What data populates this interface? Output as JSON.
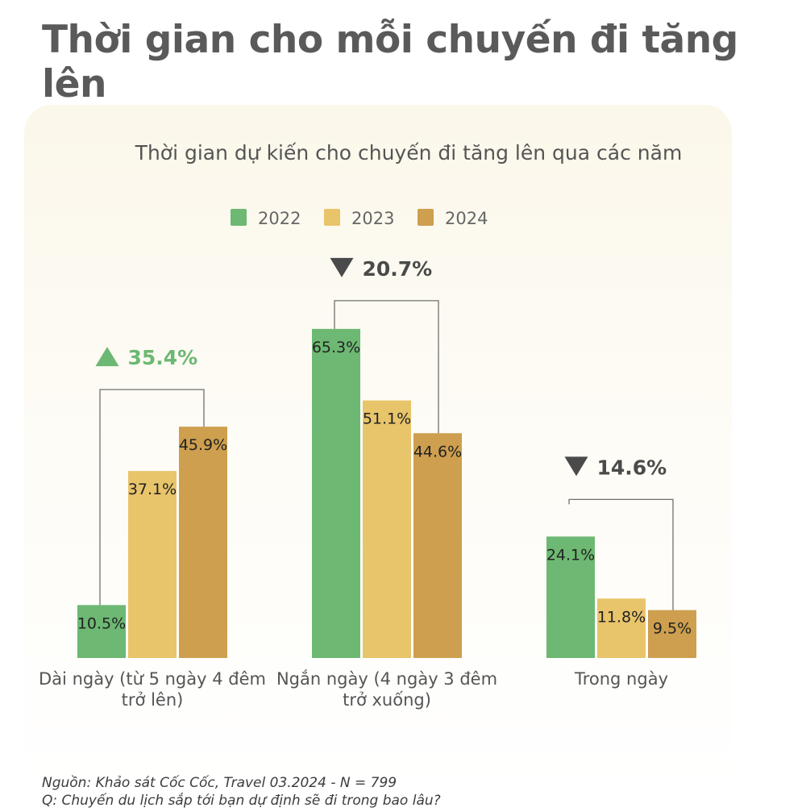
{
  "headline": "Thời gian cho mỗi chuyến đi tăng lên",
  "source_line": "Nguồn:  Khảo sát Cốc Cốc, Travel 03.2024 - N = 799",
  "question_line": "Q: Chuyến du lịch sắp tới bạn dự định sẽ đi trong bao lâu?",
  "colors": {
    "2022": "#6db872",
    "2023": "#e8c46a",
    "2024": "#cd9f4e",
    "up": "#6db872",
    "down": "#4a4a4a"
  },
  "chart_data": {
    "type": "bar",
    "title": "Thời gian dự kiến cho chuyến đi tăng lên qua các năm",
    "categories": [
      [
        "Dài ngày (từ 5 ngày 4 đêm",
        "trở lên)"
      ],
      [
        "Ngắn ngày (4 ngày 3 đêm",
        "trở xuống)"
      ],
      [
        "Trong ngày"
      ]
    ],
    "series": [
      {
        "name": "2022",
        "values": [
          10.5,
          65.3,
          24.1
        ],
        "labels": [
          "10.5%",
          "65.3%",
          "24.1%"
        ]
      },
      {
        "name": "2023",
        "values": [
          37.1,
          51.1,
          11.8
        ],
        "labels": [
          "37.1%",
          "51.1%",
          "11.8%"
        ]
      },
      {
        "name": "2024",
        "values": [
          45.9,
          44.6,
          9.5
        ],
        "labels": [
          "45.9%",
          "44.6%",
          "9.5%"
        ]
      }
    ],
    "changes": [
      {
        "direction": "up",
        "label": "35.4%"
      },
      {
        "direction": "down",
        "label": "20.7%"
      },
      {
        "direction": "down",
        "label": "14.6%"
      }
    ],
    "ylim": [
      0,
      70
    ],
    "legend": "top-center",
    "grid": false
  }
}
